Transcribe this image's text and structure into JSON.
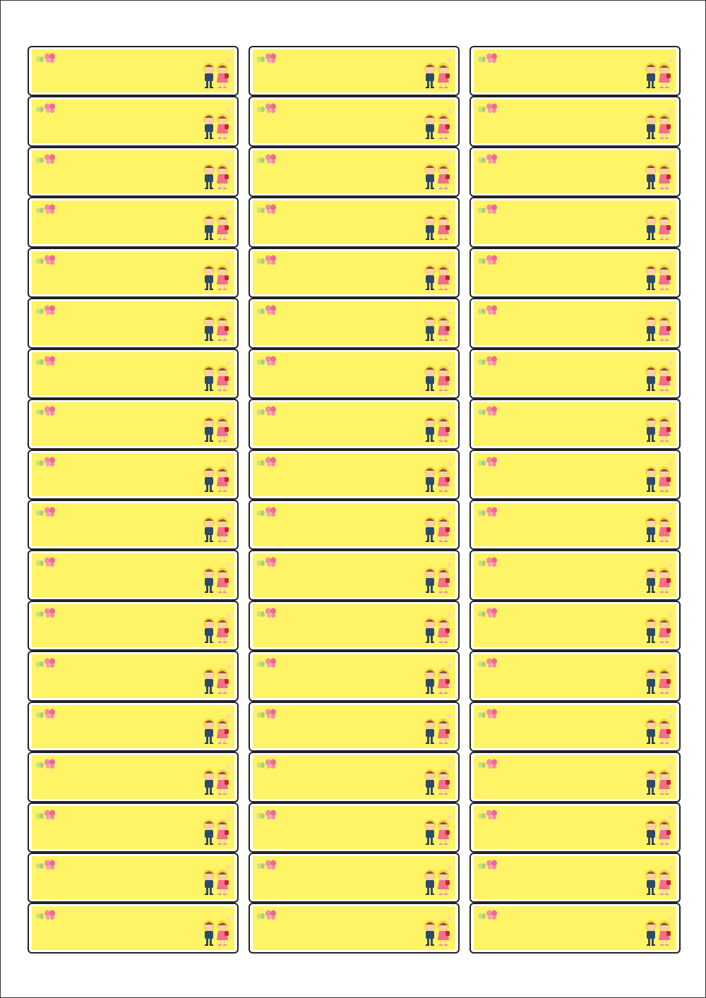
{
  "sheet": {
    "rows": 18,
    "columns": 3,
    "label_count": 54,
    "label_fill_color": "#FFF366",
    "label_border_color": "#222222",
    "decorations": [
      "butterfly-icon",
      "school-kids-illustration"
    ]
  }
}
